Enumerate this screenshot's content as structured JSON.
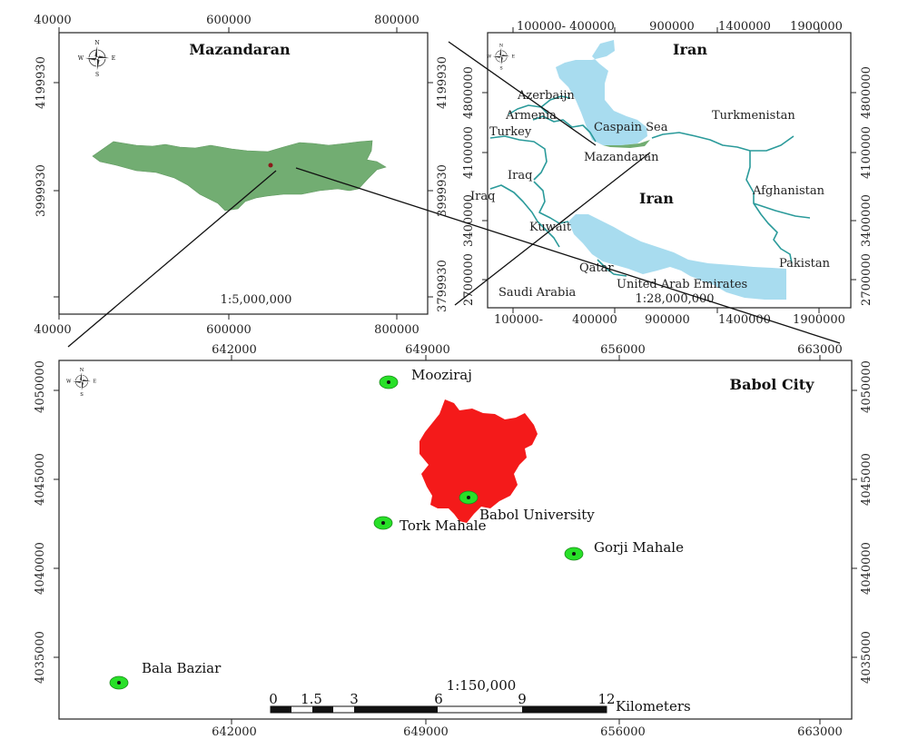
{
  "colors": {
    "province": "#72ad72",
    "sea": "#a8dcef",
    "border": "#2a9a9a",
    "city_area": "#f41a1a",
    "place_marker": "#28e028",
    "frame": "#222222"
  },
  "icons": {
    "north_arrow": "compass-rose-icon",
    "place_marker": "green-dot-marker-icon"
  },
  "compass_letters": {
    "n": "N",
    "s": "S",
    "e": "E",
    "w": "W"
  },
  "mazandaran_map": {
    "title": "Mazandaran",
    "scale": "1:5,000,000",
    "x_ticks_top": [
      "40000",
      "600000",
      "800000"
    ],
    "x_ticks_bottom": [
      "40000",
      "600000",
      "800000"
    ],
    "y_ticks_left": [
      "4199930",
      "3999930"
    ],
    "y_ticks_right": [
      "4199930",
      "3999930",
      "3799930"
    ]
  },
  "iran_map": {
    "title": "Iran",
    "scale": "1:28,000,000",
    "x_ticks_top": [
      "100000-",
      "400000",
      "900000",
      "1400000",
      "1900000"
    ],
    "x_ticks_bottom": [
      "100000-",
      "400000",
      "900000",
      "1400000",
      "1900000"
    ],
    "y_ticks_left": [
      "4800000",
      "4100000",
      "3400000",
      "2700000"
    ],
    "y_ticks_right": [
      "4800000",
      "4100000",
      "3400000",
      "2700000"
    ],
    "labels": {
      "azerbaijan": "Azerbaijn",
      "armenia": "Armenia",
      "turkey": "Turkey",
      "iraq_inner": "Iraq",
      "iraq_outer": "Iraq",
      "caspian": "Caspain Sea",
      "mazandaran": "Mazandaran",
      "turkmenistan": "Turkmenistan",
      "iran_center": "Iran",
      "afghanistan": "Afghanistan",
      "kuwait": "Kuwait",
      "qatar": "Qatar",
      "uae": "United Arab Emirates",
      "pakistan": "Pakistan",
      "saudi": "Saudi Arabia"
    }
  },
  "babol_map": {
    "title": "Babol City",
    "x_ticks_top": [
      "642000",
      "649000",
      "656000",
      "663000"
    ],
    "x_ticks_bottom": [
      "642000",
      "649000",
      "656000",
      "663000"
    ],
    "y_ticks_left": [
      "4050000",
      "4045000",
      "4040000",
      "4035000"
    ],
    "y_ticks_right": [
      "4050000",
      "4045000",
      "4040000",
      "4035000"
    ],
    "places": {
      "mooziraj": "Mooziraj",
      "babol_university": "Babol University",
      "tork_mahale": "Tork Mahale",
      "gorji_mahale": "Gorji Mahale",
      "bala_baziar": "Bala Baziar"
    },
    "scale": "1:150,000",
    "scalebar_ticks": [
      "0",
      "1.5",
      "3",
      "6",
      "9",
      "12"
    ],
    "scalebar_unit": "Kilometers"
  }
}
